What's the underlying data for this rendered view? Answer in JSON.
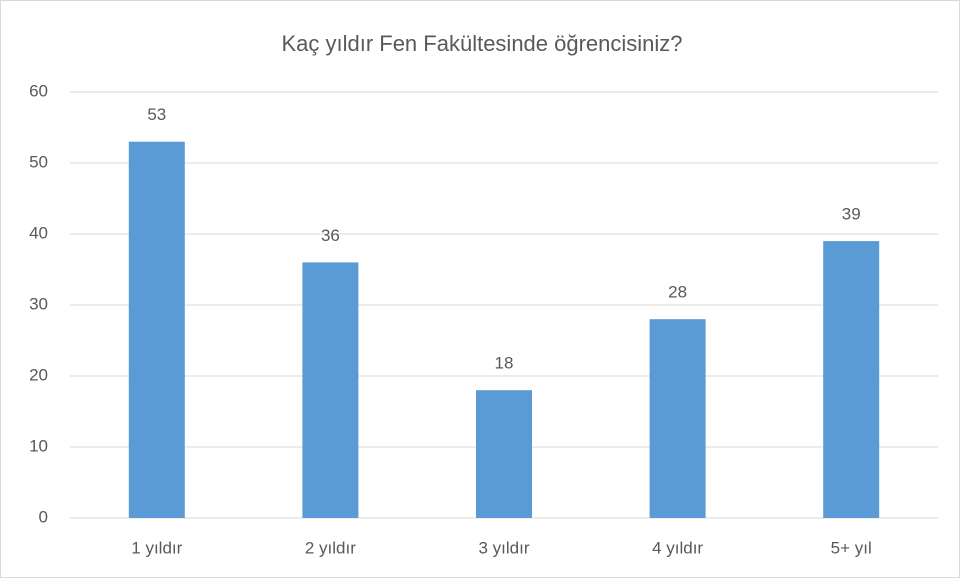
{
  "chart_data": {
    "type": "bar",
    "title": "Kaç yıldır Fen Fakültesinde öğrencisiniz?",
    "categories": [
      "1 yıldır",
      "2 yıldır",
      "3 yıldır",
      "4 yıldır",
      "5+ yıl"
    ],
    "values": [
      53,
      36,
      18,
      28,
      39
    ],
    "color": "#5b9bd5",
    "ylim": [
      0,
      60
    ],
    "yticks": [
      0,
      10,
      20,
      30,
      40,
      50,
      60
    ],
    "grid": true
  }
}
